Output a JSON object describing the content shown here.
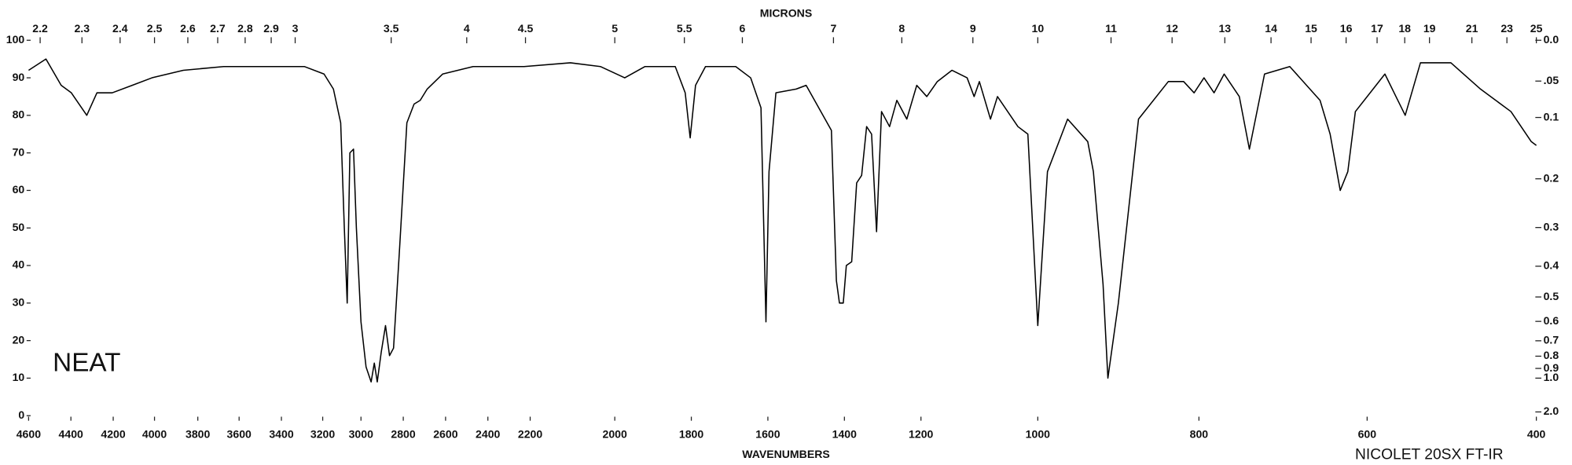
{
  "chart_data": {
    "type": "line",
    "x_title": "WAVENUMBERS",
    "x2_title": "MICRONS",
    "annotations": [
      "NEAT",
      "NICOLET 20SX FT-IR"
    ],
    "color": "#000000",
    "xlim": [
      4600,
      400
    ],
    "ylim": [
      0,
      100
    ],
    "xticks": [
      4600,
      4400,
      4200,
      4000,
      3800,
      3600,
      3400,
      3200,
      3000,
      2800,
      2600,
      2400,
      2200,
      2000,
      1800,
      1600,
      1400,
      1200,
      1000,
      800,
      600,
      400
    ],
    "yticks": [
      0,
      10,
      20,
      30,
      40,
      50,
      60,
      70,
      80,
      90,
      100
    ],
    "x2ticks": [
      2.2,
      2.3,
      2.4,
      2.5,
      2.6,
      2.7,
      2.8,
      2.9,
      3,
      3.5,
      4,
      4.5,
      5,
      5.5,
      6,
      7,
      8,
      9,
      10,
      11,
      12,
      13,
      14,
      15,
      16,
      17,
      18,
      19,
      21,
      23,
      25
    ],
    "y2scale": "absorbance",
    "y2ticks": [
      {
        "value": 0,
        "label": "0.0"
      },
      {
        "value": 0.05,
        "label": ".05"
      },
      0.1,
      0.2,
      0.3,
      0.4,
      0.5,
      0.6,
      0.7,
      0.8,
      0.9,
      {
        "value": 1,
        "label": "1.0"
      },
      {
        "value": 2,
        "label": "2.0"
      }
    ],
    "x": [
      4600,
      4518,
      4446,
      4398,
      4325,
      4277,
      4205,
      4108,
      4012,
      3867,
      3675,
      3482,
      3289,
      3193,
      3144,
      3106,
      3087,
      3072,
      3058,
      3039,
      3024,
      3000,
      2976,
      2952,
      2937,
      2923,
      2904,
      2884,
      2865,
      2846,
      2817,
      2783,
      2749,
      2720,
      2687,
      2614,
      2470,
      2229,
      2105,
      2034,
      1974,
      1921,
      1842,
      1816,
      1803,
      1789,
      1763,
      1684,
      1645,
      1618,
      1605,
      1597,
      1579,
      1526,
      1500,
      1434,
      1421,
      1413,
      1403,
      1395,
      1381,
      1368,
      1355,
      1342,
      1329,
      1316,
      1303,
      1282,
      1263,
      1237,
      1211,
      1190,
      1172,
      1147,
      1121,
      1109,
      1100,
      1081,
      1069,
      1034,
      1017,
      1000,
      988,
      963,
      938,
      931,
      919,
      913,
      900,
      875,
      838,
      819,
      806,
      794,
      782,
      770,
      752,
      740,
      722,
      692,
      656,
      644,
      632,
      623,
      614,
      579,
      555,
      537,
      501,
      466,
      430,
      406,
      400
    ],
    "values": [
      92,
      95,
      88,
      86,
      80,
      86,
      86,
      88,
      90,
      92,
      93,
      93,
      93,
      91,
      87,
      78,
      50,
      30,
      70,
      71,
      50,
      25,
      13,
      9,
      14,
      9,
      17,
      24,
      16,
      18,
      45,
      78,
      83,
      84,
      87,
      91,
      93,
      93,
      94,
      93,
      90,
      93,
      93,
      86,
      74,
      88,
      93,
      93,
      90,
      82,
      25,
      65,
      86,
      87,
      88,
      76,
      36,
      30,
      30,
      40,
      41,
      62,
      64,
      77,
      75,
      49,
      81,
      77,
      84,
      79,
      88,
      85,
      89,
      92,
      90,
      85,
      89,
      79,
      85,
      77,
      75,
      24,
      65,
      79,
      73,
      65,
      35,
      10,
      30,
      79,
      89,
      89,
      86,
      90,
      86,
      91,
      85,
      71,
      91,
      93,
      84,
      75,
      60,
      65,
      81,
      91,
      80,
      94,
      94,
      87,
      81,
      73,
      72
    ]
  }
}
